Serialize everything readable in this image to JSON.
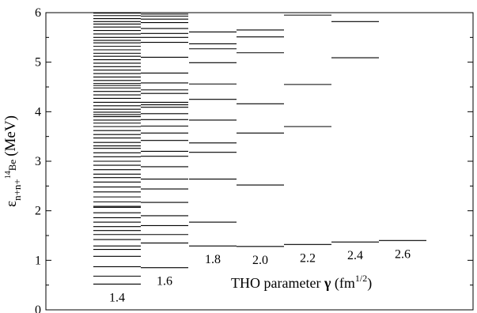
{
  "chart_data": {
    "type": "level-spectrum",
    "ylabel": "ε n+n+ 14Be (MeV)",
    "ylabel_parts": {
      "sym": "ε",
      "sub": "n+n+",
      "sup": "14",
      "sub2": "Be",
      "unit": "(MeV)"
    },
    "ylim": [
      0,
      6
    ],
    "yticks": [
      0,
      1,
      2,
      3,
      4,
      5,
      6
    ],
    "annotation": "THO parameter γ (fm1/2)",
    "annotation_parts": {
      "text": "THO parameter ",
      "sym": "γ",
      "pre": " (fm",
      "sup": "1/2",
      "post": ")"
    },
    "columns": [
      {
        "label": "1.4",
        "levels": [
          0.52,
          0.68,
          0.87,
          1.08,
          1.22,
          1.29,
          1.42,
          1.52,
          1.6,
          1.68,
          1.77,
          1.86,
          1.96,
          2.07,
          2.09,
          2.18,
          2.28,
          2.38,
          2.48,
          2.58,
          2.67,
          2.74,
          2.83,
          2.92,
          3.0,
          3.09,
          3.17,
          3.26,
          3.31,
          3.38,
          3.47,
          3.54,
          3.62,
          3.7,
          3.77,
          3.83,
          3.9,
          3.94,
          3.99,
          4.05,
          4.12,
          4.19,
          4.27,
          4.34,
          4.41,
          4.48,
          4.53,
          4.57,
          4.63,
          4.7,
          4.77,
          4.84,
          4.91,
          4.98,
          5.05,
          5.12,
          5.18,
          5.25,
          5.32,
          5.39,
          5.44,
          5.5,
          5.57,
          5.64,
          5.71,
          5.77,
          5.82,
          5.88,
          5.94,
          5.99
        ]
      },
      {
        "label": "1.6",
        "levels": [
          0.85,
          1.35,
          1.52,
          1.7,
          1.9,
          2.17,
          2.44,
          2.64,
          2.89,
          3.1,
          3.2,
          3.42,
          3.57,
          3.71,
          3.84,
          3.96,
          4.09,
          4.14,
          4.19,
          4.37,
          4.44,
          4.58,
          4.78,
          5.1,
          5.4,
          5.5,
          5.58,
          5.68,
          5.8,
          5.87,
          5.93,
          5.97
        ]
      },
      {
        "label": "1.8",
        "levels": [
          1.29,
          1.77,
          2.64,
          3.18,
          3.37,
          3.83,
          4.25,
          4.56,
          4.99,
          5.27,
          5.37,
          5.61
        ]
      },
      {
        "label": "2.0",
        "levels": [
          1.28,
          2.52,
          3.57,
          4.16,
          5.19,
          5.51,
          5.65
        ]
      },
      {
        "label": "2.2",
        "levels": [
          1.32,
          3.7,
          4.55,
          5.95
        ]
      },
      {
        "label": "2.4",
        "levels": [
          1.37,
          5.09,
          5.82
        ]
      },
      {
        "label": "2.6",
        "levels": [
          1.4
        ]
      }
    ]
  }
}
